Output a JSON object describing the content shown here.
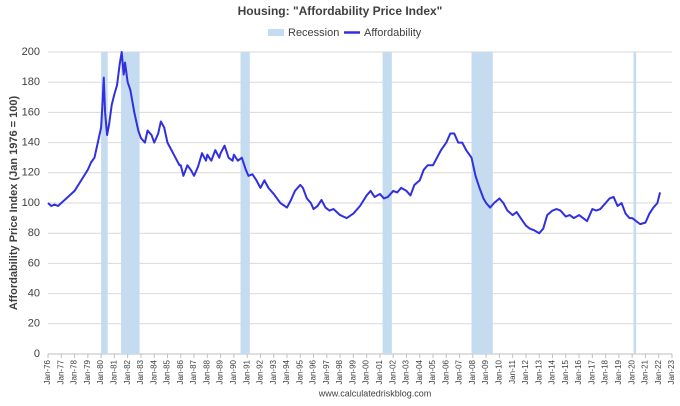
{
  "chart_data": {
    "type": "line",
    "title": "Housing: \"Affordability Price Index\"",
    "y_label": "Affordability Price Index (Jan 1976 = 100)",
    "source": "www.calculatedriskblog.com",
    "xlim": [
      1976,
      2023
    ],
    "ylim": [
      0,
      200
    ],
    "yticks": [
      0,
      20,
      40,
      60,
      80,
      100,
      120,
      140,
      160,
      180,
      200
    ],
    "grid": true,
    "legend": "top",
    "xticks": [
      {
        "value": 1976,
        "label": "Jan-76"
      },
      {
        "value": 1977,
        "label": "Jan-77"
      },
      {
        "value": 1978,
        "label": "Jan-78"
      },
      {
        "value": 1979,
        "label": "Jan-79"
      },
      {
        "value": 1980,
        "label": "Jan-80"
      },
      {
        "value": 1981,
        "label": "Jan-81"
      },
      {
        "value": 1982,
        "label": "Jan-82"
      },
      {
        "value": 1983,
        "label": "Jan-83"
      },
      {
        "value": 1984,
        "label": "Jan-84"
      },
      {
        "value": 1985,
        "label": "Jan-85"
      },
      {
        "value": 1986,
        "label": "Jan-86"
      },
      {
        "value": 1987,
        "label": "Jan-87"
      },
      {
        "value": 1988,
        "label": "Jan-88"
      },
      {
        "value": 1989,
        "label": "Jan-89"
      },
      {
        "value": 1990,
        "label": "Jan-90"
      },
      {
        "value": 1991,
        "label": "Jan-91"
      },
      {
        "value": 1992,
        "label": "Jan-92"
      },
      {
        "value": 1993,
        "label": "Jan-93"
      },
      {
        "value": 1994,
        "label": "Jan-94"
      },
      {
        "value": 1995,
        "label": "Jan-95"
      },
      {
        "value": 1996,
        "label": "Jan-96"
      },
      {
        "value": 1997,
        "label": "Jan-97"
      },
      {
        "value": 1998,
        "label": "Jan-98"
      },
      {
        "value": 1999,
        "label": "Jan-99"
      },
      {
        "value": 2000,
        "label": "Jan-00"
      },
      {
        "value": 2001,
        "label": "Jan-01"
      },
      {
        "value": 2002,
        "label": "Jan-02"
      },
      {
        "value": 2003,
        "label": "Jan-03"
      },
      {
        "value": 2004,
        "label": "Jan-04"
      },
      {
        "value": 2005,
        "label": "Jan-05"
      },
      {
        "value": 2006,
        "label": "Jan-06"
      },
      {
        "value": 2007,
        "label": "Jan-07"
      },
      {
        "value": 2008,
        "label": "Jan-08"
      },
      {
        "value": 2009,
        "label": "Jan-09"
      },
      {
        "value": 2010,
        "label": "Jan-10"
      },
      {
        "value": 2011,
        "label": "Jan-11"
      },
      {
        "value": 2012,
        "label": "Jan-12"
      },
      {
        "value": 2013,
        "label": "Jan-13"
      },
      {
        "value": 2014,
        "label": "Jan-14"
      },
      {
        "value": 2015,
        "label": "Jan-15"
      },
      {
        "value": 2016,
        "label": "Jan-16"
      },
      {
        "value": 2017,
        "label": "Jan-17"
      },
      {
        "value": 2018,
        "label": "Jan-18"
      },
      {
        "value": 2019,
        "label": "Jan-19"
      },
      {
        "value": 2020,
        "label": "Jan-20"
      },
      {
        "value": 2021,
        "label": "Jan-21"
      },
      {
        "value": 2022,
        "label": "Jan-22"
      },
      {
        "value": 2023,
        "label": "Jan-23"
      }
    ],
    "series": [
      {
        "name": "Recession",
        "type": "band",
        "color": "#c5dcf0",
        "ranges": [
          [
            1980.0,
            1980.5
          ],
          [
            1981.5,
            1982.9
          ],
          [
            1990.5,
            1991.2
          ],
          [
            2001.2,
            2001.9
          ],
          [
            2007.9,
            2009.5
          ],
          [
            2020.1,
            2020.3
          ]
        ]
      },
      {
        "name": "Affordability",
        "color": "#3030e0",
        "x": [
          1976.0,
          1976.25,
          1976.5,
          1976.75,
          1977.0,
          1977.5,
          1978.0,
          1978.5,
          1979.0,
          1979.25,
          1979.5,
          1979.75,
          1980.0,
          1980.1,
          1980.2,
          1980.3,
          1980.45,
          1980.6,
          1980.8,
          1981.0,
          1981.2,
          1981.4,
          1981.55,
          1981.7,
          1981.8,
          1982.0,
          1982.2,
          1982.5,
          1982.8,
          1983.0,
          1983.3,
          1983.5,
          1983.8,
          1984.0,
          1984.3,
          1984.5,
          1984.75,
          1985.0,
          1985.3,
          1985.6,
          1985.9,
          1986.0,
          1986.2,
          1986.5,
          1986.75,
          1987.0,
          1987.3,
          1987.6,
          1987.9,
          1988.0,
          1988.3,
          1988.6,
          1988.9,
          1989.0,
          1989.3,
          1989.6,
          1989.9,
          1990.0,
          1990.3,
          1990.6,
          1990.9,
          1991.1,
          1991.4,
          1991.7,
          1992.0,
          1992.3,
          1992.6,
          1993.0,
          1993.5,
          1994.0,
          1994.3,
          1994.6,
          1995.0,
          1995.2,
          1995.5,
          1995.8,
          1996.0,
          1996.3,
          1996.6,
          1996.9,
          1997.2,
          1997.5,
          1998.0,
          1998.5,
          1999.0,
          1999.5,
          2000.0,
          2000.3,
          2000.6,
          2001.0,
          2001.3,
          2001.6,
          2002.0,
          2002.3,
          2002.6,
          2003.0,
          2003.3,
          2003.6,
          2004.0,
          2004.3,
          2004.6,
          2005.0,
          2005.3,
          2005.6,
          2006.0,
          2006.3,
          2006.6,
          2006.9,
          2007.2,
          2007.5,
          2007.9,
          2008.2,
          2008.5,
          2008.8,
          2009.0,
          2009.3,
          2009.6,
          2010.0,
          2010.3,
          2010.6,
          2011.0,
          2011.3,
          2011.6,
          2012.0,
          2012.3,
          2012.6,
          2013.0,
          2013.3,
          2013.6,
          2014.0,
          2014.3,
          2014.6,
          2015.0,
          2015.3,
          2015.6,
          2016.0,
          2016.3,
          2016.6,
          2017.0,
          2017.3,
          2017.6,
          2018.0,
          2018.3,
          2018.6,
          2018.9,
          2019.2,
          2019.5,
          2019.8,
          2020.0,
          2020.3,
          2020.6,
          2021.0,
          2021.3,
          2021.6,
          2021.9,
          2022.1
        ],
        "values": [
          100,
          98,
          99,
          98,
          100,
          104,
          108,
          115,
          122,
          127,
          130,
          140,
          150,
          165,
          183,
          160,
          145,
          152,
          165,
          172,
          178,
          192,
          200,
          185,
          193,
          180,
          175,
          160,
          148,
          143,
          140,
          148,
          145,
          140,
          146,
          154,
          150,
          140,
          135,
          130,
          125,
          125,
          118,
          125,
          122,
          118,
          124,
          133,
          128,
          132,
          128,
          135,
          130,
          133,
          138,
          130,
          128,
          132,
          128,
          130,
          122,
          118,
          119,
          115,
          110,
          115,
          110,
          106,
          100,
          97,
          102,
          108,
          112,
          110,
          103,
          100,
          96,
          98,
          102,
          97,
          95,
          96,
          92,
          90,
          93,
          98,
          105,
          108,
          104,
          106,
          103,
          104,
          108,
          107,
          110,
          108,
          105,
          112,
          115,
          122,
          125,
          125,
          130,
          135,
          140,
          146,
          146,
          140,
          140,
          135,
          130,
          118,
          110,
          103,
          100,
          97,
          100,
          103,
          100,
          95,
          92,
          94,
          90,
          85,
          83,
          82,
          80,
          83,
          92,
          95,
          96,
          95,
          91,
          92,
          90,
          92,
          90,
          88,
          96,
          95,
          96,
          100,
          103,
          104,
          98,
          100,
          93,
          90,
          90,
          88,
          86,
          87,
          93,
          97,
          100,
          107
        ]
      }
    ]
  }
}
